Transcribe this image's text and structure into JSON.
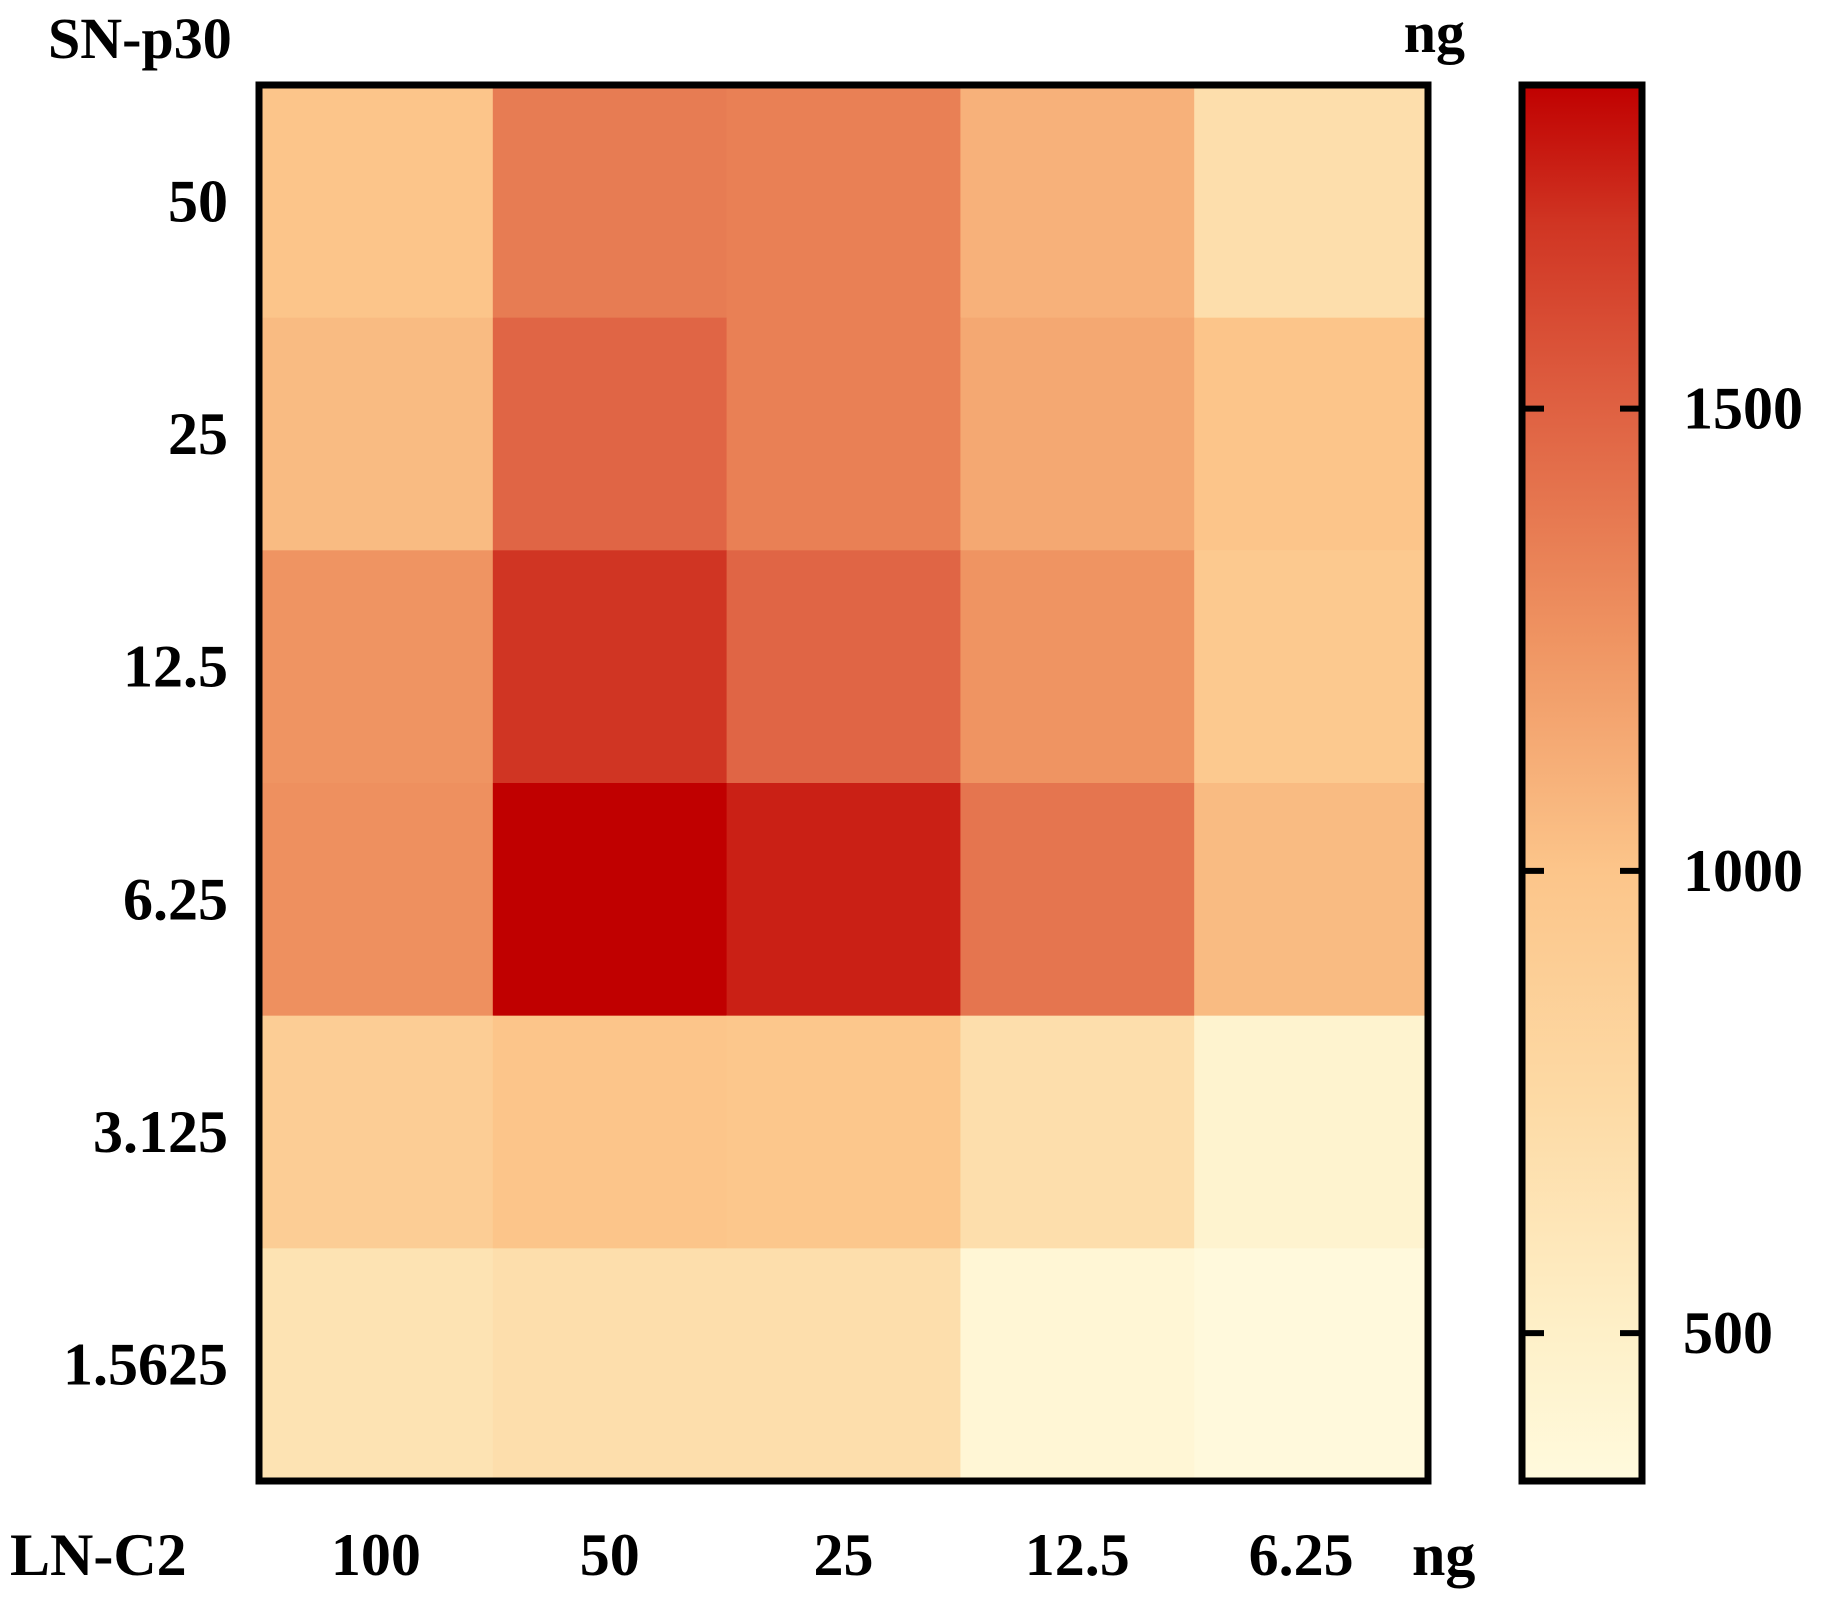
{
  "chart_data": {
    "type": "heatmap",
    "title": "",
    "ylabel": "SN-p30",
    "ylabel_unit": "ng",
    "xlabel": "LN-C2",
    "xlabel_unit": "ng",
    "x_categories": [
      "100",
      "50",
      "25",
      "12.5",
      "6.25"
    ],
    "y_categories": [
      "50",
      "25",
      "12.5",
      "6.25",
      "3.125",
      "1.5625"
    ],
    "values": [
      [
        1000,
        1370,
        1350,
        1100,
        700
      ],
      [
        1050,
        1480,
        1350,
        1150,
        1000
      ],
      [
        1250,
        1700,
        1480,
        1250,
        950
      ],
      [
        1270,
        1850,
        1760,
        1400,
        1050
      ],
      [
        900,
        1000,
        980,
        700,
        450
      ],
      [
        650,
        700,
        700,
        400,
        350
      ]
    ],
    "colorbar": {
      "range": [
        340,
        1850
      ],
      "ticks": [
        "500",
        "1000",
        "1500"
      ],
      "tick_values": [
        500,
        1000,
        1500
      ],
      "stops": [
        {
          "v": 340,
          "c": "#fffadd"
        },
        {
          "v": 500,
          "c": "#fef0c8"
        },
        {
          "v": 750,
          "c": "#fddaa5"
        },
        {
          "v": 1000,
          "c": "#fcc58a"
        },
        {
          "v": 1250,
          "c": "#ef9462"
        },
        {
          "v": 1500,
          "c": "#df6142"
        },
        {
          "v": 1700,
          "c": "#d03523"
        },
        {
          "v": 1850,
          "c": "#c00000"
        }
      ]
    }
  }
}
